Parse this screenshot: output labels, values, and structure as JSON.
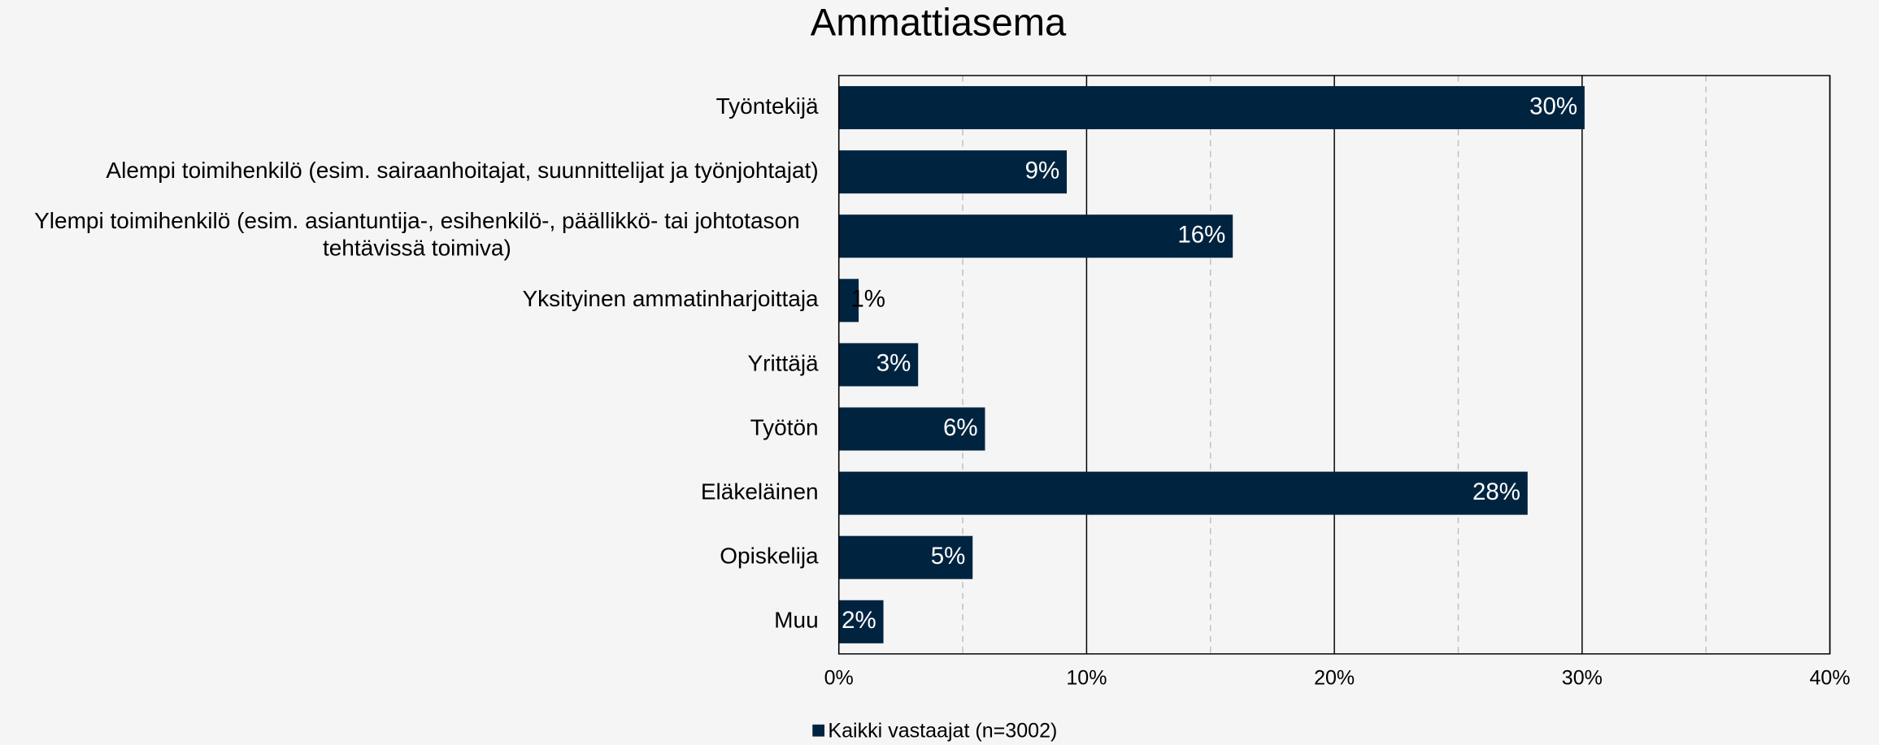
{
  "chart_data": {
    "type": "bar",
    "orientation": "horizontal",
    "title": "Ammattiasema",
    "categories": [
      "Työntekijä",
      "Alempi toimihenkilö (esim. sairaanhoitajat, suunnittelijat ja työnjohtajat)",
      "Ylempi toimihenkilö (esim. asiantuntija-, esihenkilö-, päällikkö- tai johtotason tehtävissä toimiva)",
      "Yksityinen ammatinharjoittaja",
      "Yrittäjä",
      "Työtön",
      "Eläkeläinen",
      "Opiskelija",
      "Muu"
    ],
    "series": [
      {
        "name": "Kaikki vastaajat (n=3002)",
        "color": "#002440",
        "values": [
          30.1,
          9.2,
          15.9,
          0.8,
          3.2,
          5.9,
          27.8,
          5.4,
          1.8
        ],
        "value_labels": [
          "30%",
          "9%",
          "16%",
          "1%",
          "3%",
          "6%",
          "28%",
          "5%",
          "2%"
        ]
      }
    ],
    "xlim": [
      0,
      40
    ],
    "xticks": [
      {
        "value": 0,
        "label": "0%"
      },
      {
        "value": 10,
        "label": "10%"
      },
      {
        "value": 20,
        "label": "20%"
      },
      {
        "value": 30,
        "label": "30%"
      },
      {
        "value": 40,
        "label": "40%"
      }
    ],
    "minor_xticks": [
      5,
      15,
      25,
      35
    ],
    "grid": true,
    "legend": "bottom"
  }
}
